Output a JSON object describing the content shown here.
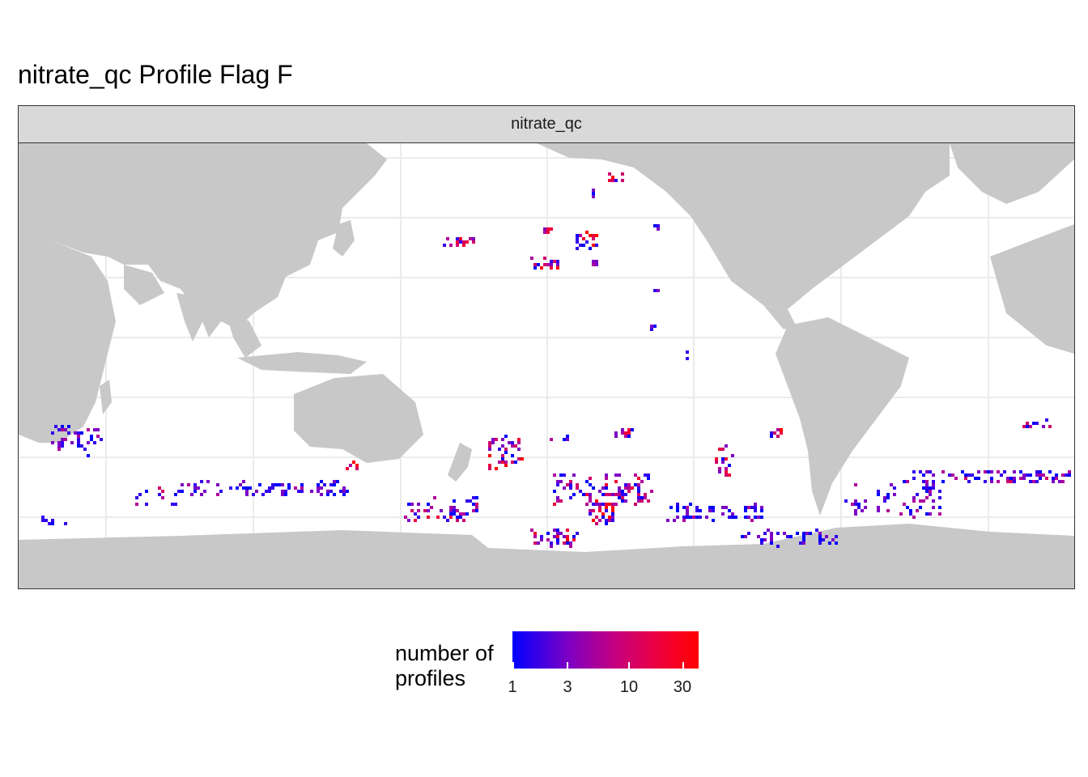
{
  "title": "nitrate_qc Profile Flag F",
  "facet": {
    "label": "nitrate_qc"
  },
  "legend": {
    "title_line1": "number of",
    "title_line2": "profiles",
    "ticks": [
      "1",
      "3",
      "10",
      "30"
    ],
    "color_low": "#0000ff",
    "color_high": "#ff0000",
    "scale": "log"
  },
  "map": {
    "land_color": "#c8c8c8",
    "ocean_color": "#ffffff",
    "grid": true,
    "projection": "Pacific-centered longitude/latitude grid"
  }
}
